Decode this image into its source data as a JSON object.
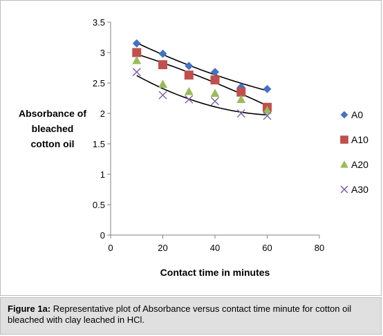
{
  "chart_data": {
    "type": "scatter",
    "xlabel": "Contact time in minutes",
    "ylabel": [
      "Absorbance of",
      "bleached",
      "cotton oil"
    ],
    "xlim": [
      0,
      80
    ],
    "ylim": [
      0,
      3.5
    ],
    "x_ticks": [
      "0",
      "20",
      "40",
      "60",
      "80"
    ],
    "y_ticks": [
      "0",
      "0.5",
      "1",
      "1.5",
      "2",
      "2.5",
      "3",
      "3.5"
    ],
    "grid": false,
    "legend_position": "right",
    "x": [
      10,
      20,
      30,
      40,
      50,
      60
    ],
    "series": [
      {
        "name": "A0",
        "values": [
          3.15,
          2.98,
          2.78,
          2.68,
          2.43,
          2.4
        ],
        "color": "#4472c4",
        "marker": "diamond"
      },
      {
        "name": "A10",
        "values": [
          3.0,
          2.8,
          2.63,
          2.55,
          2.35,
          2.1
        ],
        "color": "#c0504d",
        "marker": "square"
      },
      {
        "name": "A20",
        "values": [
          2.87,
          2.48,
          2.36,
          2.33,
          2.23,
          2.05
        ],
        "color": "#9bbb59",
        "marker": "triangle"
      },
      {
        "name": "A30",
        "values": [
          2.68,
          2.3,
          2.23,
          2.2,
          2.0,
          1.96
        ],
        "color": "#8064a2",
        "marker": "x"
      }
    ]
  },
  "caption": {
    "label": "Figure 1a:",
    "text": " Representative plot of Absorbance versus contact time minute for cotton oil bleached with clay leached in HCl."
  }
}
